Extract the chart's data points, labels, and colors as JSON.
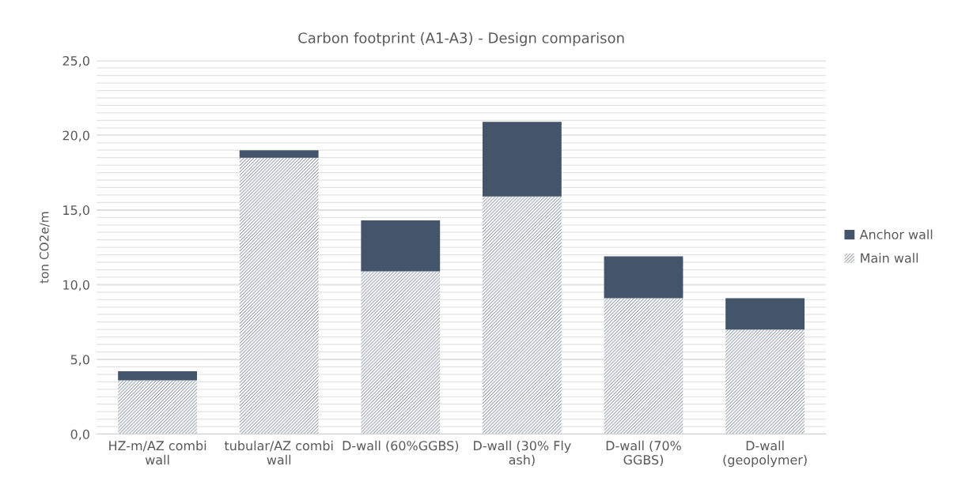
{
  "chart_data": {
    "type": "bar",
    "title": "Carbon footprint (A1-A3) - Design comparison",
    "ylabel": "ton CO2e/m",
    "categories": [
      "HZ-m/AZ combi\nwall",
      "tubular/AZ combi\nwall",
      "D-wall (60%GGBS)",
      "D-wall (30% Fly\nash)",
      "D-wall (70%\nGGBS)",
      "D-wall\n(geopolymer)"
    ],
    "series": [
      {
        "name": "Main wall",
        "color": "#44546a",
        "values": [
          3.6,
          18.5,
          10.9,
          15.9,
          9.1,
          7.0
        ]
      },
      {
        "name": "Anchor wall",
        "color": "#44546a",
        "values": [
          0.6,
          0.5,
          3.4,
          5.0,
          2.8,
          2.1
        ]
      }
    ],
    "stacked": true,
    "ylim": [
      0,
      25
    ],
    "yticks": [
      {
        "value": 0,
        "label": "0,0"
      },
      {
        "value": 0.5,
        "label": null
      },
      {
        "value": 1,
        "label": null
      },
      {
        "value": 1.5,
        "label": null
      },
      {
        "value": 2,
        "label": null
      },
      {
        "value": 2.5,
        "label": null
      },
      {
        "value": 3,
        "label": null
      },
      {
        "value": 3.5,
        "label": null
      },
      {
        "value": 4,
        "label": null
      },
      {
        "value": 4.5,
        "label": null
      },
      {
        "value": 5,
        "label": "5,0"
      },
      {
        "value": 5.5,
        "label": null
      },
      {
        "value": 6,
        "label": null
      },
      {
        "value": 6.5,
        "label": null
      },
      {
        "value": 7,
        "label": null
      },
      {
        "value": 7.5,
        "label": null
      },
      {
        "value": 8,
        "label": null
      },
      {
        "value": 8.5,
        "label": null
      },
      {
        "value": 9,
        "label": null
      },
      {
        "value": 9.5,
        "label": null
      },
      {
        "value": 10,
        "label": "10,0"
      },
      {
        "value": 10.5,
        "label": null
      },
      {
        "value": 11,
        "label": null
      },
      {
        "value": 11.5,
        "label": null
      },
      {
        "value": 12,
        "label": null
      },
      {
        "value": 12.5,
        "label": null
      },
      {
        "value": 13,
        "label": null
      },
      {
        "value": 13.5,
        "label": null
      },
      {
        "value": 14,
        "label": null
      },
      {
        "value": 14.5,
        "label": null
      },
      {
        "value": 15,
        "label": "15,0"
      },
      {
        "value": 15.5,
        "label": null
      },
      {
        "value": 16,
        "label": null
      },
      {
        "value": 16.5,
        "label": null
      },
      {
        "value": 17,
        "label": null
      },
      {
        "value": 17.5,
        "label": null
      },
      {
        "value": 18,
        "label": null
      },
      {
        "value": 18.5,
        "label": null
      },
      {
        "value": 19,
        "label": null
      },
      {
        "value": 19.5,
        "label": null
      },
      {
        "value": 20,
        "label": "20,0"
      },
      {
        "value": 20.5,
        "label": null
      },
      {
        "value": 21,
        "label": null
      },
      {
        "value": 21.5,
        "label": null
      },
      {
        "value": 22,
        "label": null
      },
      {
        "value": 22.5,
        "label": null
      },
      {
        "value": 23,
        "label": null
      },
      {
        "value": 23.5,
        "label": null
      },
      {
        "value": 24,
        "label": null
      },
      {
        "value": 24.5,
        "label": null
      },
      {
        "value": 25,
        "label": "25,0"
      }
    ],
    "grid": "y",
    "legend": "right"
  }
}
